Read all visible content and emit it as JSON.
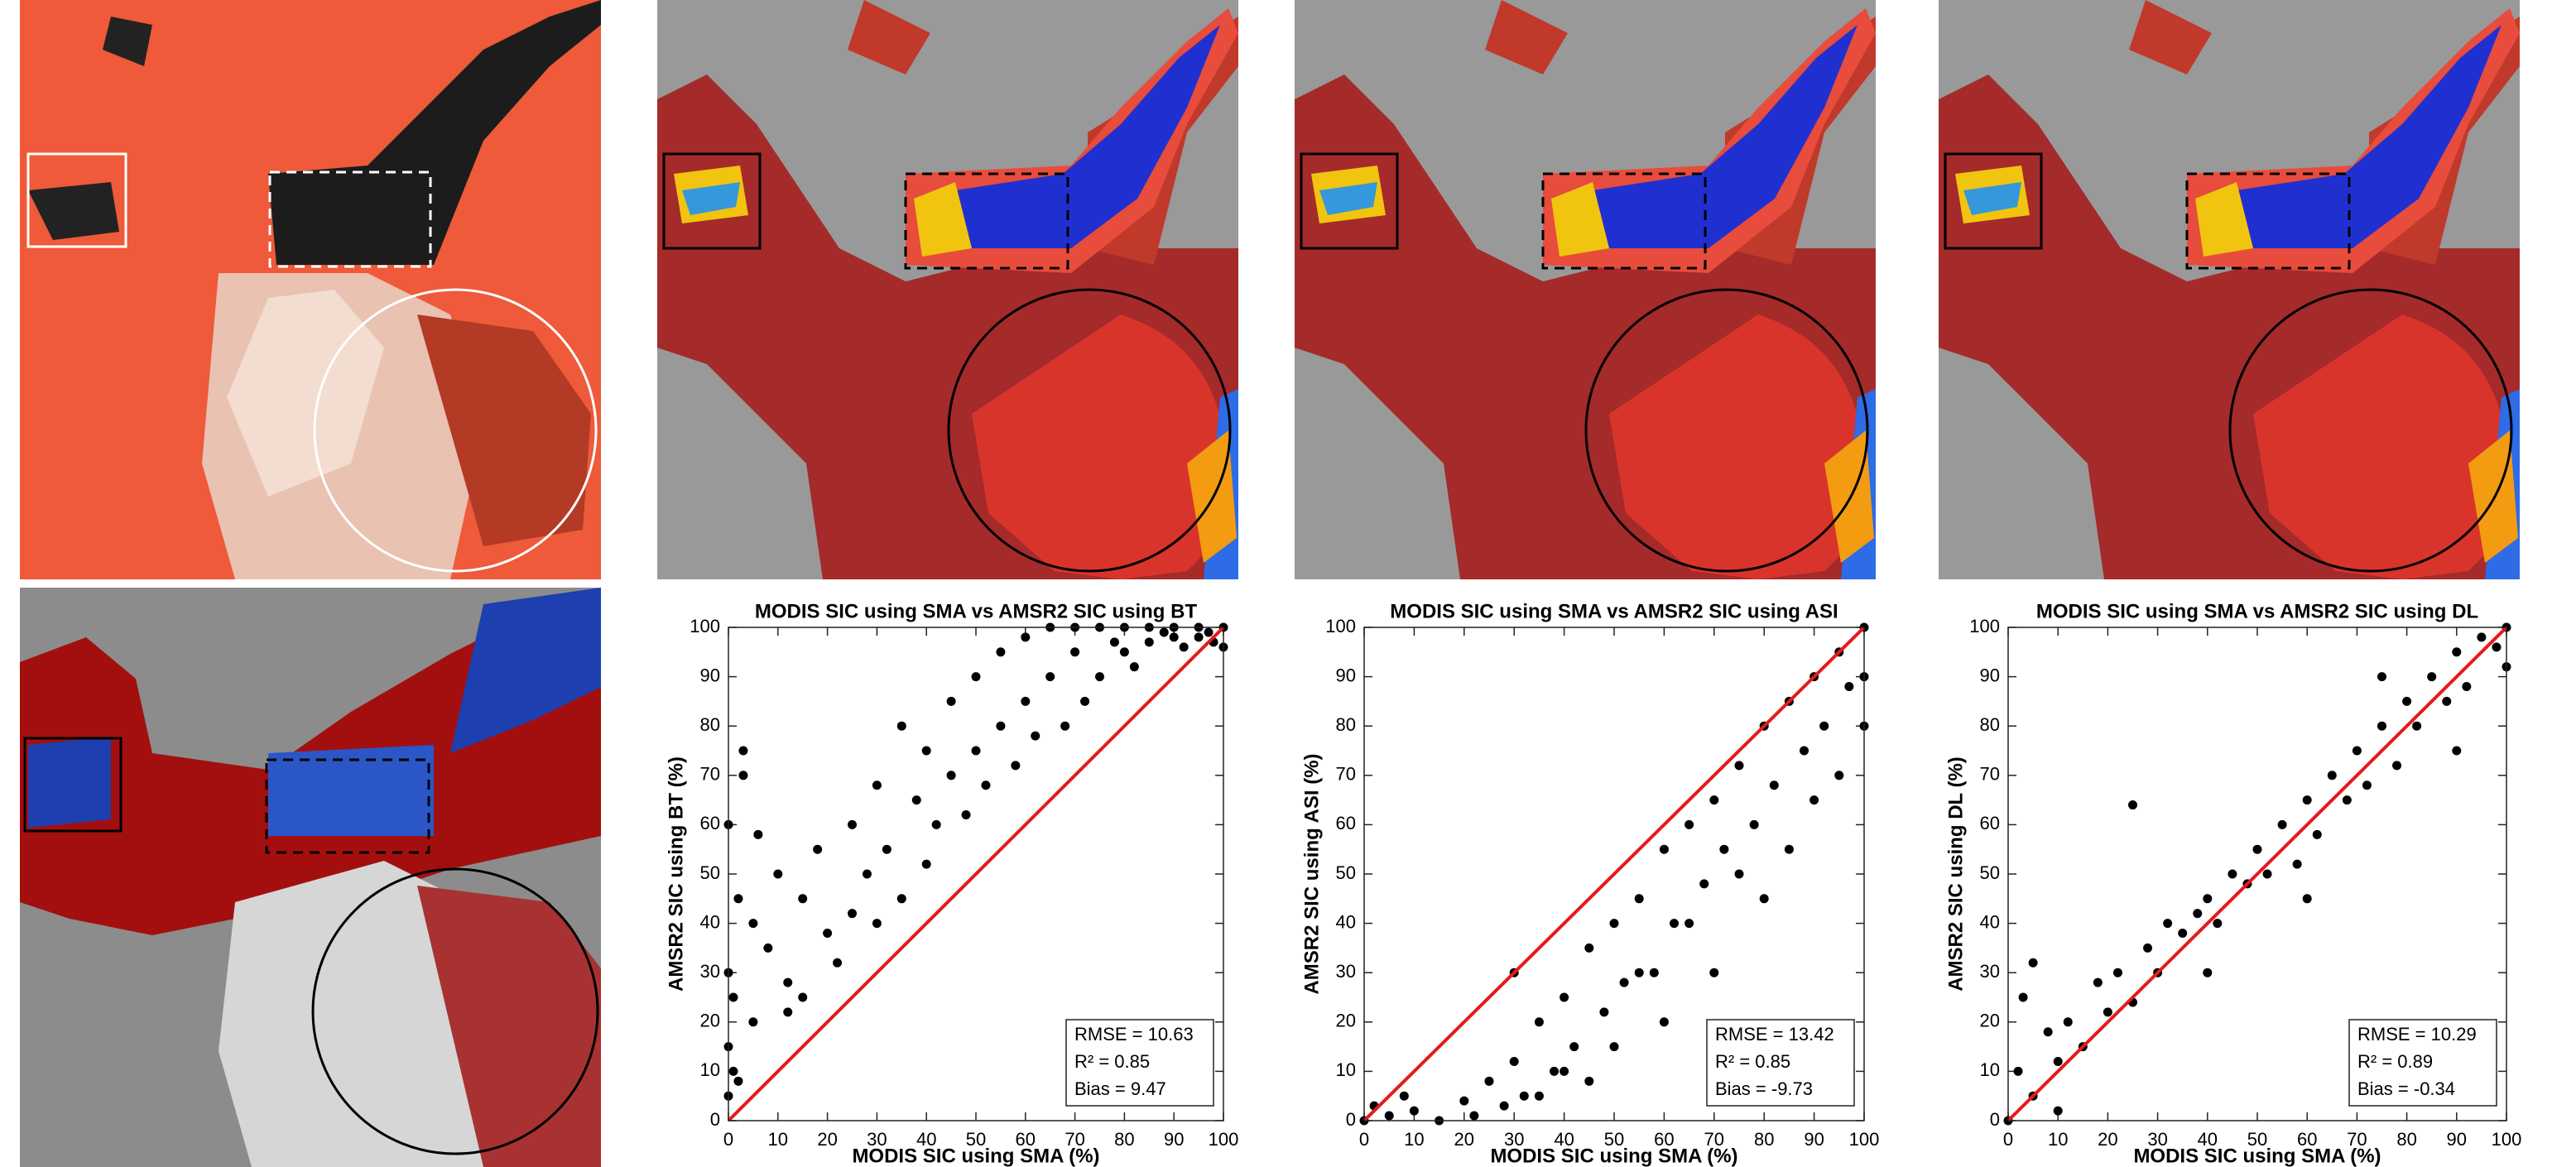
{
  "chart_data": [
    {
      "type": "scatter",
      "title": "MODIS SIC using SMA vs AMSR2 SIC using BT",
      "x_label": "MODIS SIC using SMA (%)",
      "y_label": "AMSR2 SIC using BT (%)",
      "xlim": [
        0,
        100
      ],
      "ylim": [
        0,
        100
      ],
      "xticks": [
        0,
        10,
        20,
        30,
        40,
        50,
        60,
        70,
        80,
        90,
        100
      ],
      "yticks": [
        0,
        10,
        20,
        30,
        40,
        50,
        60,
        70,
        80,
        90,
        100
      ],
      "series": [
        {
          "color": "#000000",
          "x": [
            0,
            0,
            0,
            0,
            1,
            1,
            2,
            3,
            2,
            5,
            5,
            8,
            10,
            12,
            15,
            15,
            18,
            20,
            22,
            25,
            25,
            28,
            30,
            30,
            32,
            35,
            35,
            38,
            40,
            40,
            42,
            45,
            45,
            48,
            50,
            50,
            52,
            55,
            55,
            58,
            60,
            60,
            62,
            65,
            65,
            68,
            70,
            70,
            72,
            75,
            75,
            78,
            80,
            80,
            82,
            85,
            85,
            88,
            90,
            90,
            92,
            95,
            95,
            97,
            98,
            100,
            100,
            3,
            6,
            12
          ],
          "values": [
            5,
            15,
            30,
            60,
            10,
            25,
            8,
            70,
            45,
            40,
            20,
            35,
            50,
            28,
            45,
            25,
            55,
            38,
            32,
            60,
            42,
            50,
            68,
            40,
            55,
            80,
            45,
            65,
            75,
            52,
            60,
            85,
            70,
            62,
            90,
            75,
            68,
            95,
            80,
            72,
            98,
            85,
            78,
            100,
            90,
            80,
            100,
            95,
            85,
            100,
            90,
            97,
            100,
            95,
            92,
            100,
            97,
            99,
            100,
            98,
            96,
            100,
            98,
            99,
            97,
            100,
            96,
            75,
            58,
            22
          ]
        }
      ],
      "reference_line": {
        "color": "#e41a1c",
        "x": [
          0,
          100
        ],
        "y": [
          0,
          100
        ]
      },
      "stats": [
        "RMSE = 10.63",
        "R² = 0.85",
        "Bias = 9.47"
      ]
    },
    {
      "type": "scatter",
      "title": "MODIS SIC using SMA vs AMSR2 SIC using ASI",
      "x_label": "MODIS SIC using SMA (%)",
      "y_label": "AMSR2 SIC using ASI (%)",
      "xlim": [
        0,
        100
      ],
      "ylim": [
        0,
        100
      ],
      "xticks": [
        0,
        10,
        20,
        30,
        40,
        50,
        60,
        70,
        80,
        90,
        100
      ],
      "yticks": [
        0,
        10,
        20,
        30,
        40,
        50,
        60,
        70,
        80,
        90,
        100
      ],
      "series": [
        {
          "color": "#000000",
          "x": [
            0,
            2,
            5,
            8,
            10,
            15,
            20,
            22,
            25,
            28,
            30,
            32,
            35,
            38,
            40,
            42,
            45,
            48,
            50,
            52,
            55,
            58,
            60,
            62,
            65,
            68,
            70,
            72,
            75,
            78,
            80,
            82,
            85,
            88,
            90,
            92,
            95,
            97,
            100,
            100,
            100,
            95,
            90,
            85,
            80,
            75,
            70,
            65,
            60,
            55,
            50,
            45,
            40,
            35,
            30
          ],
          "values": [
            0,
            3,
            1,
            5,
            2,
            0,
            4,
            1,
            8,
            3,
            12,
            5,
            20,
            10,
            25,
            15,
            35,
            22,
            40,
            28,
            45,
            30,
            55,
            40,
            60,
            48,
            65,
            55,
            72,
            60,
            80,
            68,
            85,
            75,
            90,
            80,
            95,
            88,
            100,
            90,
            80,
            70,
            65,
            55,
            45,
            50,
            30,
            40,
            20,
            30,
            15,
            8,
            10,
            5,
            30
          ]
        }
      ],
      "reference_line": {
        "color": "#e41a1c",
        "x": [
          0,
          100
        ],
        "y": [
          0,
          100
        ]
      },
      "stats": [
        "RMSE = 13.42",
        "R² = 0.85",
        "Bias = -9.73"
      ]
    },
    {
      "type": "scatter",
      "title": "MODIS SIC using SMA vs AMSR2 SIC using DL",
      "x_label": "MODIS SIC using SMA (%)",
      "y_label": "AMSR2 SIC using DL (%)",
      "xlim": [
        0,
        100
      ],
      "ylim": [
        0,
        100
      ],
      "xticks": [
        0,
        10,
        20,
        30,
        40,
        50,
        60,
        70,
        80,
        90,
        100
      ],
      "yticks": [
        0,
        10,
        20,
        30,
        40,
        50,
        60,
        70,
        80,
        90,
        100
      ],
      "series": [
        {
          "color": "#000000",
          "x": [
            0,
            2,
            3,
            5,
            8,
            10,
            12,
            15,
            18,
            20,
            22,
            25,
            28,
            30,
            32,
            35,
            38,
            40,
            42,
            45,
            48,
            50,
            52,
            55,
            58,
            60,
            62,
            65,
            68,
            70,
            72,
            75,
            78,
            80,
            82,
            85,
            88,
            90,
            92,
            95,
            98,
            100,
            100,
            25,
            40,
            60,
            75,
            90,
            10,
            5
          ],
          "values": [
            0,
            10,
            25,
            5,
            18,
            12,
            20,
            15,
            28,
            22,
            30,
            24,
            35,
            30,
            40,
            38,
            42,
            45,
            40,
            50,
            48,
            55,
            50,
            60,
            52,
            65,
            58,
            70,
            65,
            75,
            68,
            80,
            72,
            85,
            80,
            90,
            85,
            95,
            88,
            98,
            96,
            100,
            92,
            64,
            30,
            45,
            90,
            75,
            2,
            32
          ]
        }
      ],
      "reference_line": {
        "color": "#e41a1c",
        "x": [
          0,
          100
        ],
        "y": [
          0,
          100
        ]
      },
      "stats": [
        "RMSE = 10.29",
        "R² = 0.89",
        "Bias = -0.34"
      ]
    }
  ]
}
